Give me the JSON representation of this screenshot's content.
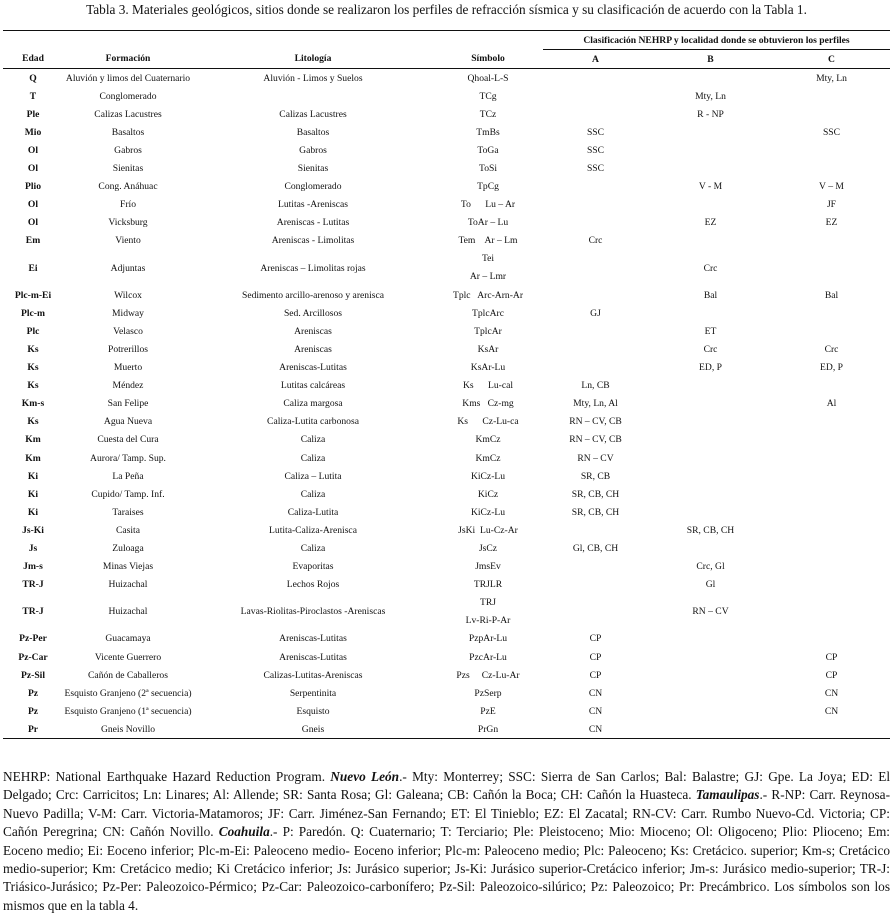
{
  "title": "Tabla 3. Materiales geológicos, sitios donde se realizaron los perfiles de refracción sísmica y su clasificación de acuerdo con la Tabla 1.",
  "table": {
    "group_header": "Clasificación NEHRP y localidad donde se obtuvieron los perfiles",
    "columns": [
      "Edad",
      "Formación",
      "Litología",
      "Símbolo",
      "A",
      "B",
      "C"
    ],
    "rows": [
      [
        "Q",
        "Aluvión y limos del Cuaternario",
        "Aluvión - Limos y Suelos",
        "Qhoal-L-S",
        null,
        null,
        "Mty, Ln"
      ],
      [
        "T",
        "Conglomerado",
        null,
        "TCg",
        null,
        "Mty, Ln",
        null
      ],
      [
        "Ple",
        "Calizas Lacustres",
        "Calizas Lacustres",
        "TCz",
        null,
        "R - NP",
        null
      ],
      [
        "Mio",
        "Basaltos",
        "Basaltos",
        "TmBs",
        "SSC",
        null,
        "SSC"
      ],
      [
        "Ol",
        "Gabros",
        "Gabros",
        "ToGa",
        "SSC",
        null,
        null
      ],
      [
        "Ol",
        "Sienitas",
        "Sienitas",
        "ToSi",
        "SSC",
        null,
        null
      ],
      [
        "Plio",
        "Cong. Anáhuac",
        "Conglomerado",
        "TpCg",
        null,
        "V - M",
        "V – M"
      ],
      [
        "Ol",
        "Frío",
        "Lutitas -Areniscas",
        "To      Lu – Ar",
        null,
        null,
        "JF"
      ],
      [
        "Ol",
        "Vicksburg",
        "Areniscas - Lutitas",
        "ToAr – Lu",
        null,
        "EZ",
        "EZ"
      ],
      [
        "Em",
        "Viento",
        "Areniscas - Limolitas",
        "Tem    Ar – Lm",
        "Crc",
        null,
        null
      ],
      [
        "Ei",
        "Adjuntas",
        "Areniscas – Limolitas rojas",
        [
          "Tei",
          "Ar – Lmr"
        ],
        null,
        "Crc",
        null
      ],
      [
        "Plc-m-Ei",
        "Wilcox",
        "Sedimento arcillo-arenoso y arenisca",
        "Tplc   Arc-Arn-Ar",
        null,
        "Bal",
        "Bal"
      ],
      [
        "Plc-m",
        "Midway",
        "Sed. Arcillosos",
        "TplcArc",
        "GJ",
        null,
        null
      ],
      [
        "Plc",
        "Velasco",
        "Areniscas",
        "TplcAr",
        null,
        "ET",
        null
      ],
      [
        "Ks",
        "Potrerillos",
        "Areniscas",
        "KsAr",
        null,
        "Crc",
        "Crc"
      ],
      [
        "Ks",
        "Muerto",
        "Areniscas-Lutitas",
        "KsAr-Lu",
        null,
        "ED, P",
        "ED, P"
      ],
      [
        "Ks",
        "Méndez",
        "Lutitas calcáreas",
        "Ks      Lu-cal",
        "Ln, CB",
        null,
        null
      ],
      [
        "Km-s",
        "San Felipe",
        "Caliza margosa",
        "Kms   Cz-mg",
        "Mty, Ln, Al",
        null,
        "Al"
      ],
      [
        "Ks",
        "Agua Nueva",
        "Caliza-Lutita carbonosa",
        "Ks      Cz-Lu-ca",
        "RN – CV, CB",
        null,
        null
      ],
      [
        "Km",
        "Cuesta del Cura",
        "Caliza",
        "KmCz",
        "RN – CV, CB",
        null,
        null
      ],
      [
        "Km",
        "Aurora/ Tamp. Sup.",
        "Caliza",
        "KmCz",
        "RN – CV",
        null,
        null
      ],
      [
        "Ki",
        "La Peña",
        "Caliza – Lutita",
        "KiCz-Lu",
        "SR, CB",
        null,
        null
      ],
      [
        "Ki",
        "Cupido/ Tamp. Inf.",
        "Caliza",
        "KiCz",
        "SR, CB, CH",
        null,
        null
      ],
      [
        "Ki",
        "Taraises",
        "Caliza-Lutita",
        "KiCz-Lu",
        "SR, CB, CH",
        null,
        null
      ],
      [
        "Js-Ki",
        "Casita",
        "Lutita-Caliza-Arenisca",
        "JsKi  Lu-Cz-Ar",
        null,
        "SR, CB, CH",
        null
      ],
      [
        "Js",
        "Zuloaga",
        "Caliza",
        "JsCz",
        "Gl, CB, CH",
        null,
        null
      ],
      [
        "Jm-s",
        "Minas Viejas",
        "Evaporitas",
        "JmsEv",
        null,
        "Crc, Gl",
        null
      ],
      [
        "TR-J",
        "Huizachal",
        "Lechos Rojos",
        "TRJLR",
        null,
        "Gl",
        null
      ],
      [
        "TR-J",
        "Huizachal",
        "Lavas-Riolitas-Piroclastos -Areniscas",
        [
          "TRJ",
          "Lv-Ri-P-Ar"
        ],
        null,
        "RN – CV",
        null
      ],
      [
        "Pz-Per",
        "Guacamaya",
        "Areniscas-Lutitas",
        "PzpAr-Lu",
        "CP",
        null,
        null
      ],
      [
        "Pz-Car",
        "Vicente Guerrero",
        "Areniscas-Lutitas",
        "PzcAr-Lu",
        "CP",
        null,
        "CP"
      ],
      [
        "Pz-Sil",
        "Cañón de Caballeros",
        "Calizas-Lutitas-Areniscas",
        "Pzs     Cz-Lu-Ar",
        "CP",
        null,
        "CP"
      ],
      [
        "Pz",
        "Esquisto Granjeno (2ª secuencia)",
        "Serpentinita",
        "PzSerp",
        "CN",
        null,
        "CN"
      ],
      [
        "Pz",
        "Esquisto Granjeno (1ª secuencia)",
        "Esquisto",
        "PzE",
        "CN",
        null,
        "CN"
      ],
      [
        "Pr",
        "Gneis Novillo",
        "Gneis",
        "PrGn",
        "CN",
        null,
        null
      ]
    ]
  },
  "note": [
    {
      "text": "NEHRP: National Earthquake Hazard Reduction Program. "
    },
    {
      "text": "Nuevo León",
      "emphasis": true
    },
    {
      "text": ".- Mty: Monterrey; SSC: Sierra de San Carlos; Bal: Balastre; GJ: Gpe. La Joya; ED: El Delgado; Crc: Carricitos; Ln: Linares; Al: Allende; SR: Santa Rosa; Gl: Galeana; CB: Cañón la Boca; CH: Cañón la Huasteca. "
    },
    {
      "text": "Tamaulipas",
      "emphasis": true
    },
    {
      "text": ".- R-NP: Carr. Reynosa-Nuevo Padilla; V-M: Carr. Victoria-Matamoros; JF: Carr. Jiménez-San Fernando; ET: El Tinieblo; EZ: El Zacatal; RN-CV: Carr. Rumbo Nuevo-Cd. Victoria; CP: Cañón Peregrina; CN: Cañón Novillo. "
    },
    {
      "text": "Coahuila",
      "emphasis": true
    },
    {
      "text": ".- P: Paredón. Q: Cuaternario; T: Terciario; Ple: Pleistoceno; Mio: Mioceno; Ol: Oligoceno; Plio: Plioceno; Em: Eoceno medio; Ei: Eoceno inferior; Plc-m-Ei: Paleoceno medio- Eoceno inferior; Plc-m: Paleoceno medio; Plc: Paleoceno; Ks: Cretácico. superior; Km-s; Cretácico medio-superior; Km: Cretácico medio; Ki Cretácico inferior; Js: Jurásico superior; Js-Ki: Jurásico superior-Cretácico inferior; Jm-s: Jurásico medio-superior; TR-J: Triásico-Jurásico; Pz-Per: Paleozoico-Pérmico; Pz-Car: Paleozoico-carbonífero; Pz-Sil: Paleozoico-silúrico; Pz: Paleozoico; Pr: Precámbrico. Los símbolos son los mismos que en la tabla 4."
    }
  ]
}
